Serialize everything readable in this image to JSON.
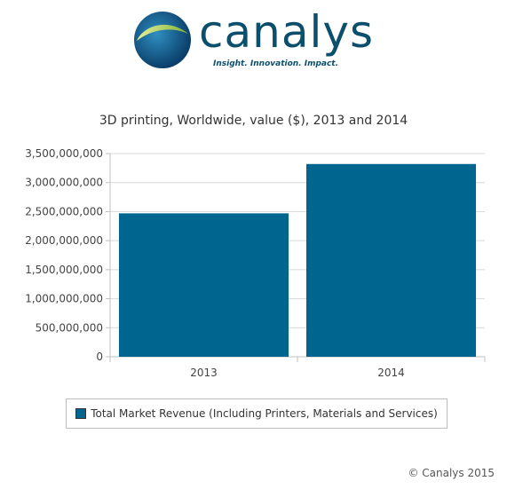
{
  "logo": {
    "wordmark": "canalys",
    "tagline": "Insight. Innovation. Impact."
  },
  "chart_data": {
    "type": "bar",
    "title": "3D printing, Worldwide, value ($), 2013 and 2014",
    "categories": [
      "2013",
      "2014"
    ],
    "series": [
      {
        "name": "Total Market Revenue (Including Printers, Materials and Services)",
        "values": [
          2470000000,
          3320000000
        ],
        "color": "#006690"
      }
    ],
    "ylim": [
      0,
      3500000000
    ],
    "yticks": [
      0,
      500000000,
      1000000000,
      1500000000,
      2000000000,
      2500000000,
      3000000000,
      3500000000
    ],
    "ytick_labels": [
      "0",
      "500,000,000",
      "1,000,000,000",
      "1,500,000,000",
      "2,000,000,000",
      "2,500,000,000",
      "3,000,000,000",
      "3,500,000,000"
    ],
    "grid": true,
    "legend": "bottom"
  },
  "footer": {
    "copyright": "© Canalys 2015"
  }
}
